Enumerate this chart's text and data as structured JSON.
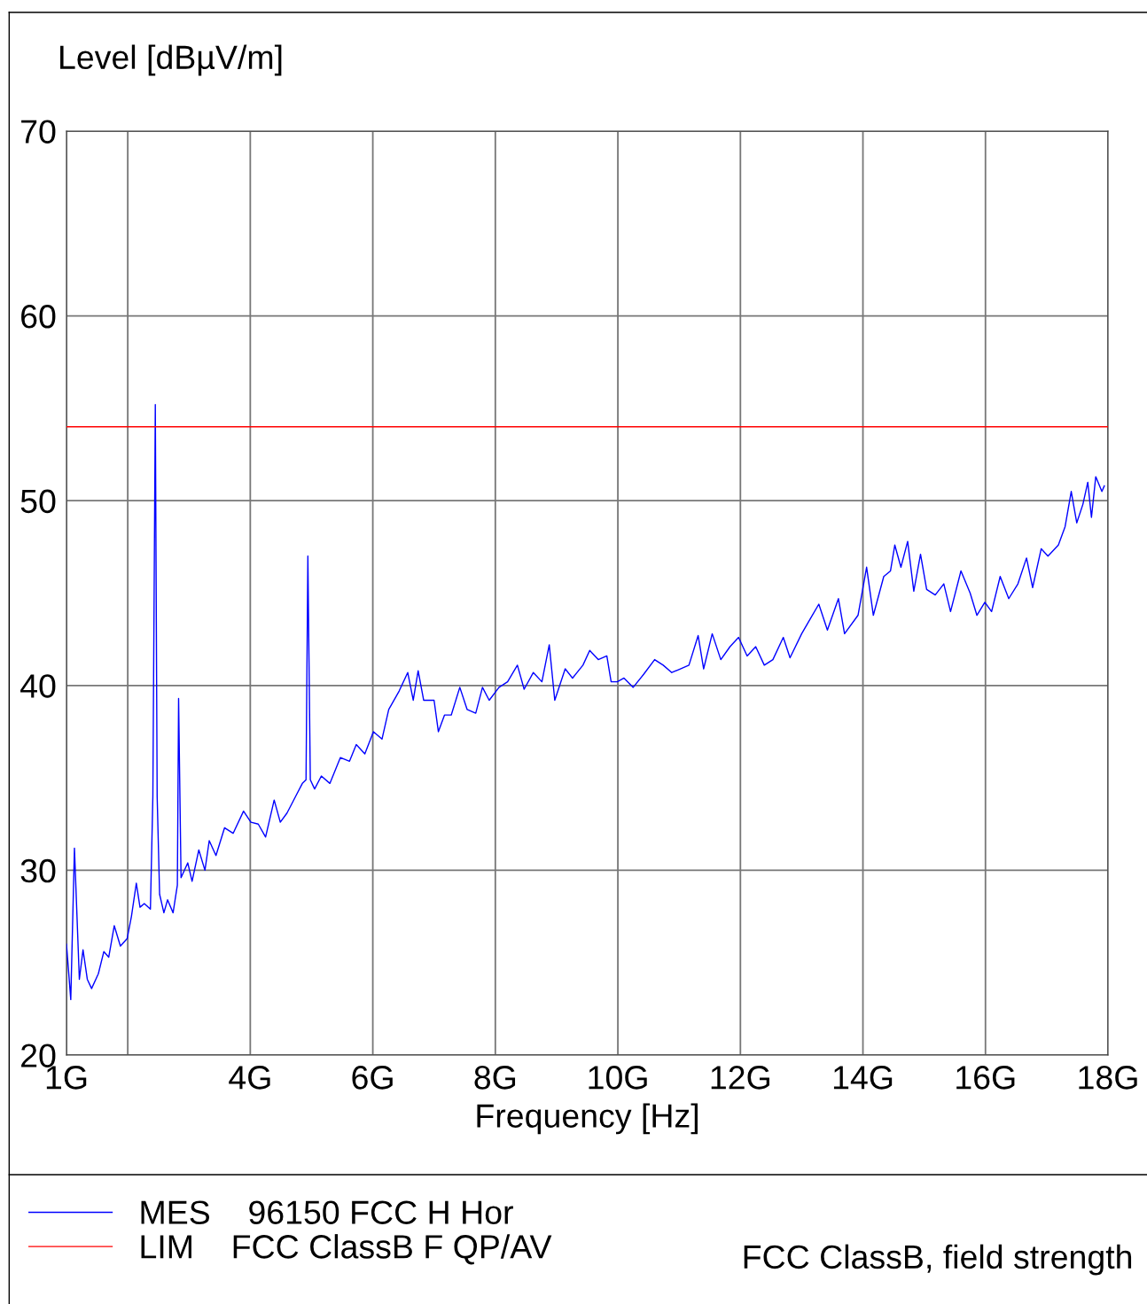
{
  "chart_data": {
    "type": "line",
    "ylabel": "Level [dBµV/m]",
    "xlabel": "Frequency [Hz]",
    "xlim": [
      1,
      18
    ],
    "ylim": [
      20,
      70
    ],
    "xticks": [
      {
        "value": 1,
        "label": "1G"
      },
      {
        "value": 2,
        "label": null
      },
      {
        "value": 4,
        "label": "4G"
      },
      {
        "value": 6,
        "label": "6G"
      },
      {
        "value": 8,
        "label": "8G"
      },
      {
        "value": 10,
        "label": "10G"
      },
      {
        "value": 12,
        "label": "12G"
      },
      {
        "value": 14,
        "label": "14G"
      },
      {
        "value": 16,
        "label": "16G"
      },
      {
        "value": 18,
        "label": "18G"
      }
    ],
    "yticks": [
      20,
      30,
      40,
      50,
      60,
      70
    ],
    "grid": true,
    "legend": "bottom left",
    "marker": "none",
    "line_style": "solid",
    "annotations": [
      "FCC ClassB, field strength"
    ],
    "series": [
      {
        "name": "MES    96150 FCC H Hor",
        "color": "#0000ff",
        "x": [
          1.0,
          1.07,
          1.13,
          1.21,
          1.27,
          1.34,
          1.41,
          1.52,
          1.61,
          1.69,
          1.78,
          1.88,
          1.99,
          2.06,
          2.14,
          2.2,
          2.27,
          2.37,
          2.41,
          2.45,
          2.48,
          2.52,
          2.59,
          2.65,
          2.74,
          2.81,
          2.83,
          2.87,
          2.98,
          3.05,
          3.16,
          3.26,
          3.33,
          3.44,
          3.58,
          3.72,
          3.89,
          4.01,
          4.13,
          4.25,
          4.39,
          4.49,
          4.6,
          4.74,
          4.85,
          4.91,
          4.94,
          4.98,
          5.05,
          5.16,
          5.3,
          5.47,
          5.62,
          5.73,
          5.87,
          6.01,
          6.15,
          6.26,
          6.43,
          6.57,
          6.66,
          6.74,
          6.83,
          7.0,
          7.07,
          7.17,
          7.28,
          7.42,
          7.54,
          7.68,
          7.79,
          7.9,
          8.06,
          8.2,
          8.36,
          8.47,
          8.62,
          8.76,
          8.88,
          8.97,
          9.14,
          9.26,
          9.43,
          9.54,
          9.68,
          9.82,
          9.89,
          9.99,
          10.1,
          10.25,
          10.42,
          10.6,
          10.74,
          10.88,
          11.02,
          11.16,
          11.31,
          11.4,
          11.54,
          11.68,
          11.83,
          11.97,
          12.11,
          12.25,
          12.39,
          12.53,
          12.7,
          12.81,
          13.0,
          13.14,
          13.28,
          13.42,
          13.6,
          13.7,
          13.92,
          14.06,
          14.17,
          14.34,
          14.45,
          14.52,
          14.62,
          14.73,
          14.83,
          14.94,
          15.04,
          15.18,
          15.32,
          15.43,
          15.6,
          15.75,
          15.86,
          15.99,
          16.1,
          16.24,
          16.38,
          16.53,
          16.67,
          16.77,
          16.91,
          17.02,
          17.19,
          17.3,
          17.4,
          17.49,
          17.59,
          17.67,
          17.73,
          17.8,
          17.9,
          17.94
        ],
        "values": [
          26.0,
          23.0,
          31.2,
          24.1,
          25.7,
          24.1,
          23.6,
          24.4,
          25.6,
          25.3,
          27.0,
          25.9,
          26.3,
          27.5,
          29.3,
          28.0,
          28.2,
          27.9,
          34.0,
          55.2,
          34.0,
          28.7,
          27.7,
          28.4,
          27.7,
          29.2,
          39.3,
          29.6,
          30.4,
          29.4,
          31.1,
          30.0,
          31.6,
          30.8,
          32.3,
          32.0,
          33.2,
          32.6,
          32.5,
          31.8,
          33.8,
          32.6,
          33.1,
          34.0,
          34.7,
          34.9,
          47.0,
          34.9,
          34.4,
          35.1,
          34.7,
          36.1,
          35.9,
          36.8,
          36.3,
          37.5,
          37.1,
          38.7,
          39.7,
          40.7,
          39.2,
          40.8,
          39.2,
          39.2,
          37.5,
          38.4,
          38.4,
          39.9,
          38.7,
          38.5,
          39.9,
          39.2,
          39.9,
          40.2,
          41.1,
          39.8,
          40.7,
          40.2,
          42.2,
          39.2,
          40.9,
          40.4,
          41.1,
          41.9,
          41.4,
          41.6,
          40.2,
          40.2,
          40.4,
          39.9,
          40.6,
          41.4,
          41.1,
          40.7,
          40.9,
          41.1,
          42.7,
          40.9,
          42.8,
          41.4,
          42.1,
          42.6,
          41.6,
          42.1,
          41.1,
          41.4,
          42.6,
          41.5,
          42.8,
          43.6,
          44.4,
          43.0,
          44.7,
          42.8,
          43.8,
          46.4,
          43.8,
          45.9,
          46.2,
          47.6,
          46.4,
          47.8,
          45.1,
          47.1,
          45.2,
          44.9,
          45.5,
          44.0,
          46.2,
          45.0,
          43.8,
          44.5,
          44.0,
          45.9,
          44.7,
          45.5,
          46.9,
          45.3,
          47.4,
          47.0,
          47.6,
          48.6,
          50.5,
          48.8,
          49.8,
          51.0,
          49.1,
          51.3,
          50.5,
          50.8
        ]
      },
      {
        "name": "LIM    FCC ClassB F QP/AV",
        "color": "#ff0000",
        "x": [
          1,
          18
        ],
        "values": [
          54,
          54
        ]
      }
    ]
  }
}
